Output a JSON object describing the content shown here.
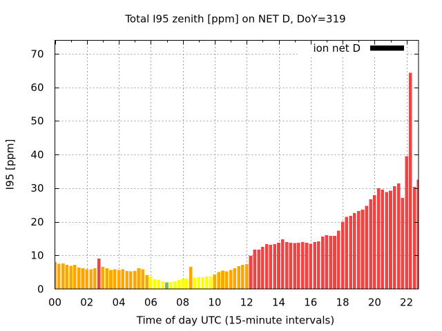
{
  "chart_data": {
    "type": "bar",
    "title": "Total I95 zenith [ppm] on NET D, DoY=319",
    "xlabel": "Time of day UTC (15-minute intervals)",
    "ylabel": "I95 [ppm]",
    "x_unit": "hours UTC",
    "x_start_hours": 0,
    "x_step_hours": 0.25,
    "xlim": [
      0,
      22.75
    ],
    "ylim": [
      0,
      74.1
    ],
    "grid": true,
    "xticks": [
      {
        "value": 0,
        "label": "00"
      },
      {
        "value": 2,
        "label": "02"
      },
      {
        "value": 4,
        "label": "04"
      },
      {
        "value": 6,
        "label": "06"
      },
      {
        "value": 8,
        "label": "08"
      },
      {
        "value": 10,
        "label": "10"
      },
      {
        "value": 12,
        "label": "12"
      },
      {
        "value": 14,
        "label": "14"
      },
      {
        "value": 16,
        "label": "16"
      },
      {
        "value": 18,
        "label": "18"
      },
      {
        "value": 20,
        "label": "20"
      },
      {
        "value": 22,
        "label": "22"
      }
    ],
    "xminor_step_hours": 1,
    "yticks": [
      {
        "value": 0,
        "label": "0"
      },
      {
        "value": 10,
        "label": "10"
      },
      {
        "value": 20,
        "label": "20"
      },
      {
        "value": 30,
        "label": "30"
      },
      {
        "value": 40,
        "label": "40"
      },
      {
        "value": 50,
        "label": "50"
      },
      {
        "value": 60,
        "label": "60"
      },
      {
        "value": 70,
        "label": "70"
      }
    ],
    "legend": {
      "label": "ion net D",
      "color": "#000000",
      "position": "top-right"
    },
    "palette": {
      "green": "#7dc242",
      "yellow": "#ffff00",
      "orange": "#ffa500",
      "red": "#ee4444"
    },
    "categories": [
      "00:00",
      "00:15",
      "00:30",
      "00:45",
      "01:00",
      "01:15",
      "01:30",
      "01:45",
      "02:00",
      "02:15",
      "02:30",
      "02:45",
      "03:00",
      "03:15",
      "03:30",
      "03:45",
      "04:00",
      "04:15",
      "04:30",
      "04:45",
      "05:00",
      "05:15",
      "05:30",
      "05:45",
      "06:00",
      "06:15",
      "06:30",
      "06:45",
      "07:00",
      "07:15",
      "07:30",
      "07:45",
      "08:00",
      "08:15",
      "08:30",
      "08:45",
      "09:00",
      "09:15",
      "09:30",
      "09:45",
      "10:00",
      "10:15",
      "10:30",
      "10:45",
      "11:00",
      "11:15",
      "11:30",
      "11:45",
      "12:00",
      "12:15",
      "12:30",
      "12:45",
      "13:00",
      "13:15",
      "13:30",
      "13:45",
      "14:00",
      "14:15",
      "14:30",
      "14:45",
      "15:00",
      "15:15",
      "15:30",
      "15:45",
      "16:00",
      "16:15",
      "16:30",
      "16:45",
      "17:00",
      "17:15",
      "17:30",
      "17:45",
      "18:00",
      "18:15",
      "18:30",
      "18:45",
      "19:00",
      "19:15",
      "19:30",
      "19:45",
      "20:00",
      "20:15",
      "20:30",
      "20:45",
      "21:00",
      "21:15",
      "21:30",
      "21:45",
      "22:00",
      "22:15",
      "22:30",
      "22:45"
    ],
    "values": [
      8.0,
      7.5,
      7.6,
      7.2,
      6.9,
      7.2,
      6.4,
      6.2,
      5.8,
      5.8,
      6.2,
      9.0,
      6.6,
      6.2,
      5.6,
      5.8,
      5.6,
      5.8,
      5.3,
      5.2,
      5.3,
      6.2,
      5.8,
      4.1,
      3.7,
      2.9,
      2.7,
      2.3,
      2.0,
      2.1,
      2.3,
      2.7,
      3.1,
      3.1,
      6.6,
      3.3,
      3.5,
      3.5,
      3.7,
      3.7,
      4.3,
      5.0,
      5.4,
      5.2,
      5.6,
      6.2,
      6.8,
      7.2,
      7.4,
      9.9,
      11.7,
      11.7,
      12.5,
      13.3,
      13.1,
      13.3,
      13.8,
      14.8,
      14.0,
      13.8,
      13.6,
      13.8,
      14.0,
      13.8,
      13.4,
      14.0,
      14.2,
      15.6,
      16.0,
      15.8,
      15.8,
      17.3,
      20.0,
      21.4,
      21.8,
      22.6,
      23.2,
      23.6,
      24.7,
      26.7,
      27.9,
      30.0,
      29.6,
      28.8,
      29.2,
      30.6,
      31.4,
      27.1,
      39.5,
      64.4,
      30.4,
      32.5
    ],
    "bar_colors": [
      "orange",
      "orange",
      "orange",
      "orange",
      "orange",
      "orange",
      "orange",
      "orange",
      "orange",
      "orange",
      "orange",
      "red",
      "orange",
      "orange",
      "orange",
      "orange",
      "orange",
      "orange",
      "orange",
      "orange",
      "orange",
      "orange",
      "orange",
      "orange",
      "yellow",
      "yellow",
      "yellow",
      "yellow",
      "green",
      "yellow",
      "yellow",
      "yellow",
      "yellow",
      "yellow",
      "orange",
      "yellow",
      "yellow",
      "yellow",
      "yellow",
      "yellow",
      "orange",
      "orange",
      "orange",
      "orange",
      "orange",
      "orange",
      "orange",
      "orange",
      "orange",
      "red",
      "red",
      "red",
      "red",
      "red",
      "red",
      "red",
      "red",
      "red",
      "red",
      "red",
      "red",
      "red",
      "red",
      "red",
      "red",
      "red",
      "red",
      "red",
      "red",
      "red",
      "red",
      "red",
      "red",
      "red",
      "red",
      "red",
      "red",
      "red",
      "red",
      "red",
      "red",
      "red",
      "red",
      "red",
      "red",
      "red",
      "red",
      "red",
      "red",
      "red",
      "red",
      "red"
    ]
  }
}
